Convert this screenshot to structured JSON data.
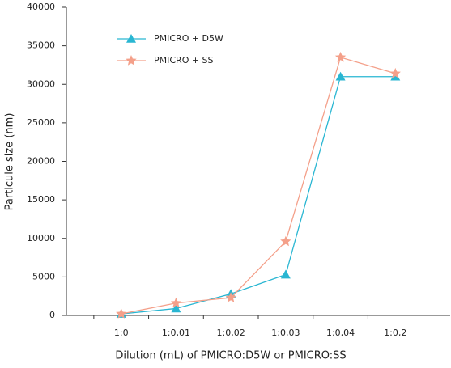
{
  "chart_data": {
    "type": "line",
    "xlabel": "Dilution (mL) of PMICRO:D5W or PMICRO:SS",
    "ylabel": "Particule size (nm)",
    "categories": [
      "1:0",
      "1:0,01",
      "1:0,02",
      "1:0,03",
      "1:0,04",
      "1:0,2"
    ],
    "series": [
      {
        "name": "PMICRO + D5W",
        "color": "#29b6d2",
        "marker": "triangle",
        "values": [
          200,
          900,
          2800,
          5300,
          31000,
          31000
        ]
      },
      {
        "name": "PMICRO + SS",
        "color": "#f4a08a",
        "marker": "star",
        "values": [
          200,
          1600,
          2300,
          9600,
          33500,
          31400
        ]
      }
    ],
    "ylim": [
      0,
      40000
    ],
    "yticks": [
      0,
      5000,
      10000,
      15000,
      20000,
      25000,
      30000,
      35000,
      40000
    ],
    "grid": false
  }
}
